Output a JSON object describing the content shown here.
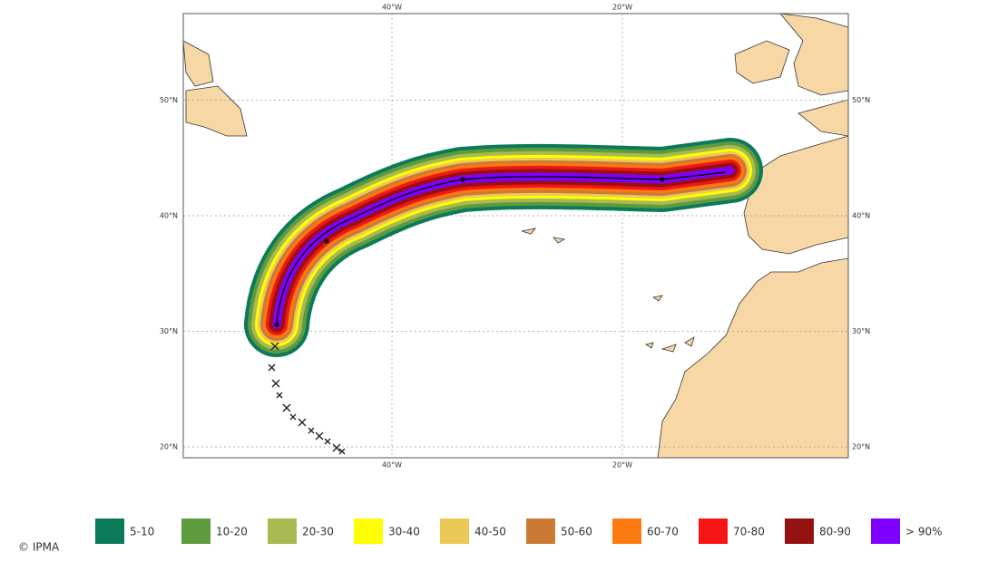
{
  "map": {
    "lon_ticks": [
      {
        "value": -40,
        "label": "40°W"
      },
      {
        "value": -20,
        "label": "20°W"
      }
    ],
    "lat_ticks": [
      {
        "value": 50,
        "label": "50°N"
      },
      {
        "value": 40,
        "label": "40°N"
      },
      {
        "value": 30,
        "label": "30°N"
      },
      {
        "value": 20,
        "label": "20°N"
      }
    ]
  },
  "legend": [
    {
      "label": "5-10",
      "color": "#0b7a58"
    },
    {
      "label": "10-20",
      "color": "#5e9a3e"
    },
    {
      "label": "20-30",
      "color": "#a9ba52"
    },
    {
      "label": "30-40",
      "color": "#ffff00"
    },
    {
      "label": "40-50",
      "color": "#ecc957"
    },
    {
      "label": "50-60",
      "color": "#cb7a36"
    },
    {
      "label": "60-70",
      "color": "#fb7a12"
    },
    {
      "label": "70-80",
      "color": "#f51515"
    },
    {
      "label": "80-90",
      "color": "#951212"
    },
    {
      "label": "> 90%",
      "color": "#8000ff"
    }
  ],
  "credit": "© IPMA"
}
